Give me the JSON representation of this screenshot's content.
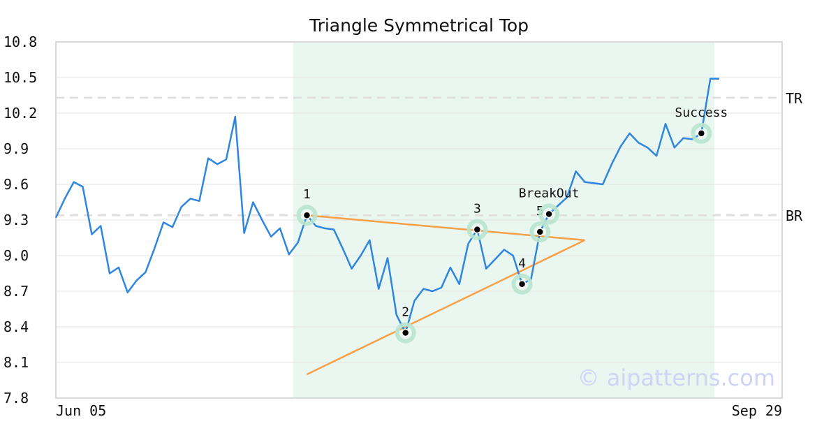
{
  "chart_data": {
    "type": "line",
    "title": "Triangle Symmetrical Top",
    "xlabel": "",
    "ylabel": "",
    "ylim": [
      7.8,
      10.8
    ],
    "y_ticks": [
      "10.8",
      "10.5",
      "10.2",
      "9.9",
      "9.6",
      "9.3",
      "9.0",
      "8.7",
      "8.4",
      "8.1",
      "7.8"
    ],
    "x_tick_labels": [
      "Jun 05",
      "Sep 29"
    ],
    "x_range": [
      "2025-06-05",
      "2025-09-29"
    ],
    "grid": true,
    "series": [
      {
        "values": [
          9.32,
          9.48,
          9.62,
          9.58,
          9.18,
          9.25,
          8.85,
          8.9,
          8.69,
          8.79,
          8.86,
          9.06,
          9.28,
          9.24,
          9.41,
          9.48,
          9.46,
          9.82,
          9.77,
          9.81,
          10.17,
          9.19,
          9.45,
          9.3,
          9.16,
          9.23,
          9.01,
          9.11,
          9.34,
          9.25,
          9.23,
          9.22,
          9.06,
          8.89,
          9.0,
          9.13,
          8.72,
          8.98,
          8.5,
          8.35,
          8.62,
          8.72,
          8.7,
          8.73,
          8.9,
          8.76,
          9.1,
          9.22,
          8.89,
          8.97,
          9.05,
          9.0,
          8.76,
          8.8,
          9.2,
          9.35,
          9.42,
          9.49,
          9.71,
          9.62,
          9.61,
          9.6,
          9.77,
          9.92,
          10.03,
          9.95,
          9.91,
          9.84,
          10.11,
          9.91,
          9.99,
          9.98,
          10.03,
          10.49,
          10.49
        ],
        "color": "#2e86de"
      }
    ],
    "markers": [
      {
        "label": "1",
        "index": 28,
        "value": 9.34
      },
      {
        "label": "2",
        "index": 39,
        "value": 8.35
      },
      {
        "label": "3",
        "index": 47,
        "value": 9.22
      },
      {
        "label": "4",
        "index": 52,
        "value": 8.76
      },
      {
        "label": "5",
        "index": 54,
        "value": 9.2
      },
      {
        "label": "BreakOut",
        "index": 55,
        "value": 9.35
      },
      {
        "label": "Success",
        "index": 72,
        "value": 10.03
      }
    ],
    "triangle_lines": {
      "upper": {
        "from": {
          "index": 28,
          "value": 9.34
        },
        "to": {
          "index": 59,
          "value": 9.13
        }
      },
      "lower": {
        "from": {
          "index": 28,
          "value": 8.0
        },
        "to": {
          "index": 59,
          "value": 9.13
        }
      },
      "color": "#f7a048"
    },
    "levels": [
      {
        "label": "TR",
        "value": 10.33
      },
      {
        "label": "BR",
        "value": 9.34
      }
    ],
    "highlight_range": {
      "start_index": 26,
      "end_index": 73,
      "color": "#eaf6f0"
    },
    "watermark": "© aipatterns.com"
  }
}
